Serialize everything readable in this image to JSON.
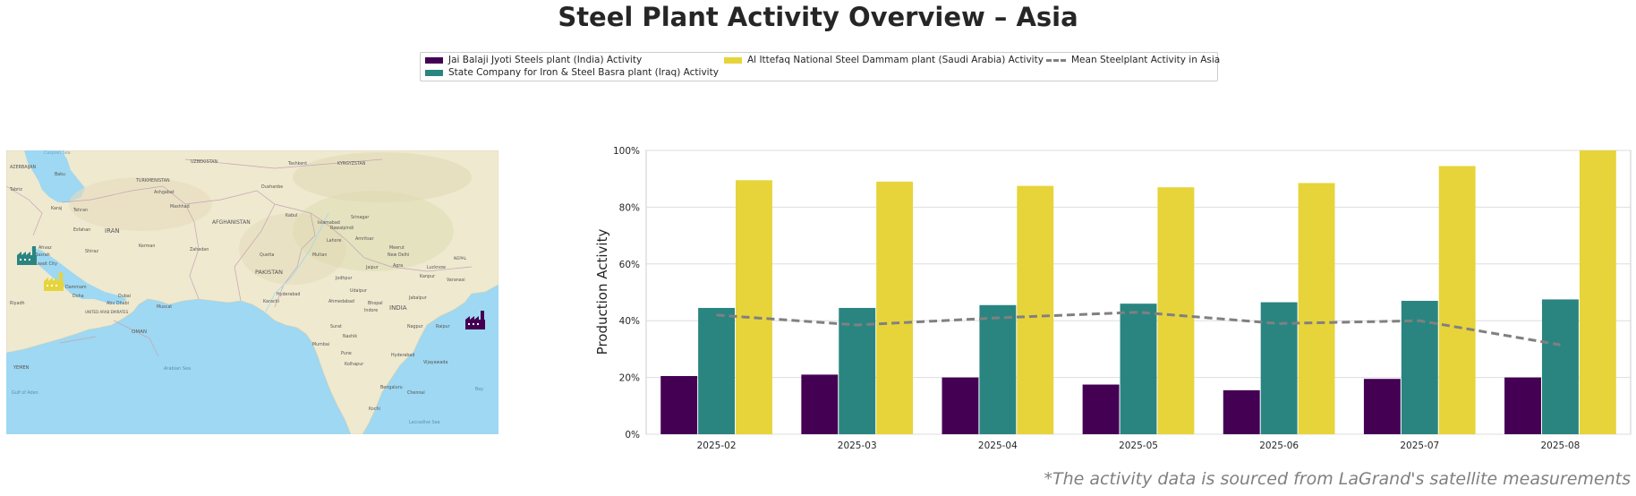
{
  "title": "Steel Plant Activity Overview – Asia",
  "source_note": "*The activity data is sourced from LaGrand's satellite measurements",
  "legend": {
    "items": [
      {
        "label": "Jai Balaji Jyoti Steels plant (India) Activity",
        "color": "#440154"
      },
      {
        "label": "State Company for Iron & Steel Basra plant (Iraq) Activity",
        "color": "#2a8580"
      },
      {
        "label": "Al Ittefaq National Steel Dammam plant (Saudi Arabia) Activity",
        "color": "#e6d43a"
      },
      {
        "label": "Mean Steelplant Activity in Asia",
        "color": "#808080"
      }
    ]
  },
  "map": {
    "labels": {
      "caspian": "Caspian Sea",
      "azerbaijan": "AZERBAIJAN",
      "baku": "Baku",
      "tabriz": "Tabriz",
      "turkmenistan": "TURKMENISTAN",
      "ashgabat": "Ashgabat",
      "mashhad": "Mashhad",
      "uzbekistan": "UZBEKISTAN",
      "tashkent": "Tashkent",
      "kyrgyzstan": "KYRGYZSTAN",
      "dushanbe": "Dushanbe",
      "karaj": "Karaj",
      "tehran": "Tehran",
      "iran": "IRAN",
      "isfahan": "Esfahan",
      "shiraz": "Shiraz",
      "kerman": "Kerman",
      "zahedan": "Zahedan",
      "afghanistan": "AFGHANISTAN",
      "kabul": "Kabul",
      "islamabad": "Islamabad",
      "srinagar": "Srinagar",
      "rawalpindi": "Rawalpindi",
      "lahore": "Lahore",
      "amritsar": "Amritsar",
      "quetta": "Quetta",
      "multan": "Multan",
      "pakistan": "PAKISTAN",
      "ahvaz": "Ahvaz",
      "basrah": "Basrah",
      "kuwait": "Kuwait City",
      "dammam": "Dammam",
      "doha": "Doha",
      "riyadh": "Riyadh",
      "dubai": "Dubai",
      "abudhabi": "Abu Dhabi",
      "muscat": "Muscat",
      "uae": "UNITED ARAB EMIRATES",
      "oman": "OMAN",
      "karachi": "Karachi",
      "hyderabad_pk": "Hyderabad",
      "jaipur": "Jaipur",
      "agra": "Agra",
      "newdelhi": "New Delhi",
      "meerut": "Meerut",
      "lucknow": "Lucknow",
      "kanpur": "Kanpur",
      "varanasi": "Varanasi",
      "nepal": "NEPAL",
      "india": "INDIA",
      "ahmedabad": "Ahmedabad",
      "bhopal": "Bhopal",
      "indore": "Indore",
      "jabalpur": "Jabalpur",
      "surat": "Surat",
      "nashik": "Nashik",
      "mumbai": "Mumbai",
      "pune": "Pune",
      "nagpur": "Nagpur",
      "raipur": "Raipur",
      "hyderabad_in": "Hyderabad",
      "kolhapur": "Kolhapur",
      "vijayawada": "Vijayawada",
      "bengaluru": "Bengaluru",
      "chennai": "Chennai",
      "kochi": "Kochi",
      "yemen": "YEMEN",
      "arabian_sea": "Arabian Sea",
      "gulf_aden": "Gulf of Aden",
      "laccadive": "Laccadive Sea",
      "bay": "Bay",
      "udaipur": "Udaipur",
      "jodhpur": "Jodhpur"
    }
  },
  "chart_data": {
    "type": "bar",
    "categories": [
      "2025-02",
      "2025-03",
      "2025-04",
      "2025-05",
      "2025-06",
      "2025-07",
      "2025-08"
    ],
    "series": [
      {
        "name": "Jai Balaji Jyoti Steels plant (India) Activity",
        "color": "#440154",
        "values": [
          20.5,
          21,
          20,
          17.5,
          15.5,
          19.5,
          20
        ]
      },
      {
        "name": "State Company for Iron & Steel Basra plant (Iraq) Activity",
        "color": "#2a8580",
        "values": [
          44.5,
          44.5,
          45.5,
          46,
          46.5,
          47,
          47.5
        ]
      },
      {
        "name": "Al Ittefaq National Steel Dammam plant (Saudi Arabia) Activity",
        "color": "#e6d43a",
        "values": [
          89.5,
          89,
          87.5,
          87,
          88.5,
          94.5,
          100
        ]
      }
    ],
    "line": {
      "name": "Mean Steelplant Activity in Asia",
      "color": "#808080",
      "values": [
        42,
        38.5,
        41,
        43,
        39,
        40,
        31.5
      ]
    },
    "ylabel": "Production Activity",
    "ylim": [
      0,
      100
    ],
    "yticks": [
      "0%",
      "20%",
      "40%",
      "60%",
      "80%",
      "100%"
    ],
    "grid": true
  }
}
